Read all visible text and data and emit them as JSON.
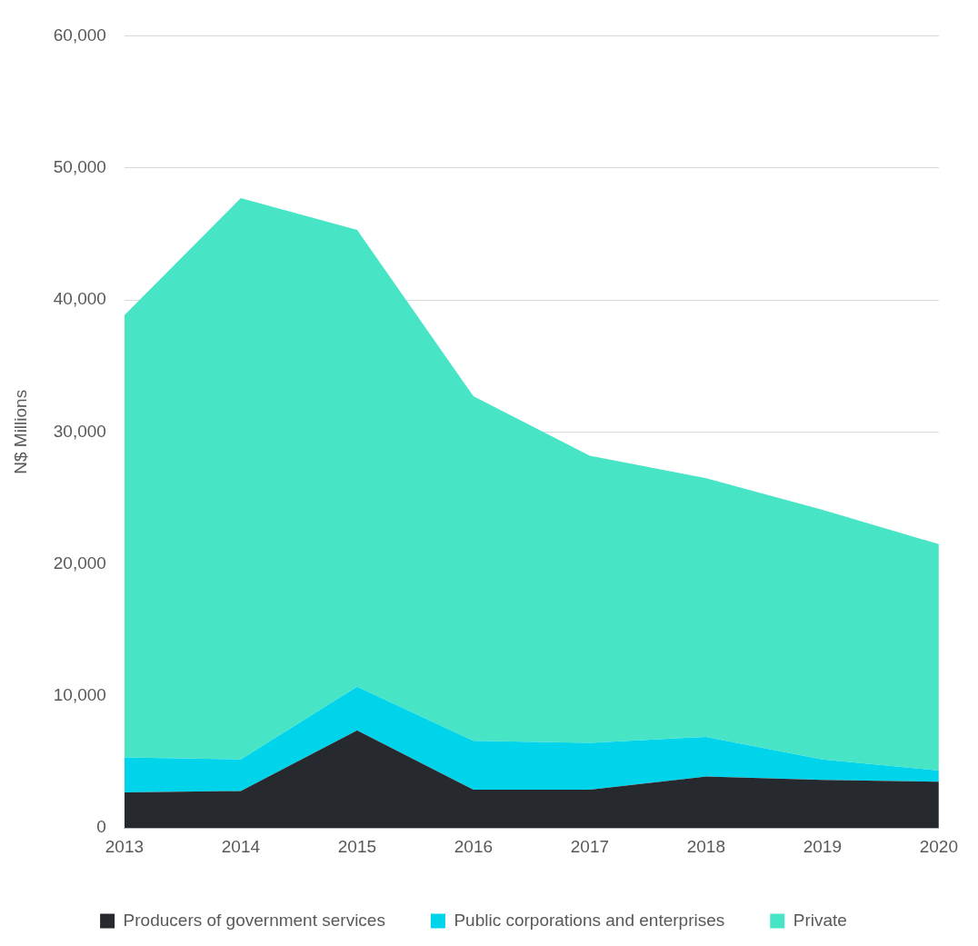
{
  "chart_data": {
    "type": "area",
    "stacked": true,
    "ylabel": "N$ Millions",
    "categories": [
      "2013",
      "2014",
      "2015",
      "2016",
      "2017",
      "2018",
      "2019",
      "2020"
    ],
    "series": [
      {
        "name": "Producers of government services",
        "color": "#26292e",
        "values": [
          2700,
          2800,
          7400,
          2900,
          2900,
          3900,
          3650,
          3500
        ]
      },
      {
        "name": "Public corporations and enterprises",
        "color": "#00d4ea",
        "values": [
          2650,
          2400,
          3300,
          3700,
          3550,
          3000,
          1550,
          850
        ]
      },
      {
        "name": "Private",
        "color": "#47e5c5",
        "values": [
          33500,
          42500,
          34600,
          26100,
          21750,
          19600,
          18900,
          17150
        ]
      }
    ],
    "ylim": [
      0,
      60000
    ],
    "yticks": [
      {
        "value": 0,
        "label": "0"
      },
      {
        "value": 10000,
        "label": "10,000"
      },
      {
        "value": 20000,
        "label": "20,000"
      },
      {
        "value": 30000,
        "label": "30,000"
      },
      {
        "value": 40000,
        "label": "40,000"
      },
      {
        "value": 50000,
        "label": "50,000"
      },
      {
        "value": 60000,
        "label": "60,000"
      }
    ],
    "grid": "y",
    "legend": "bottom"
  }
}
